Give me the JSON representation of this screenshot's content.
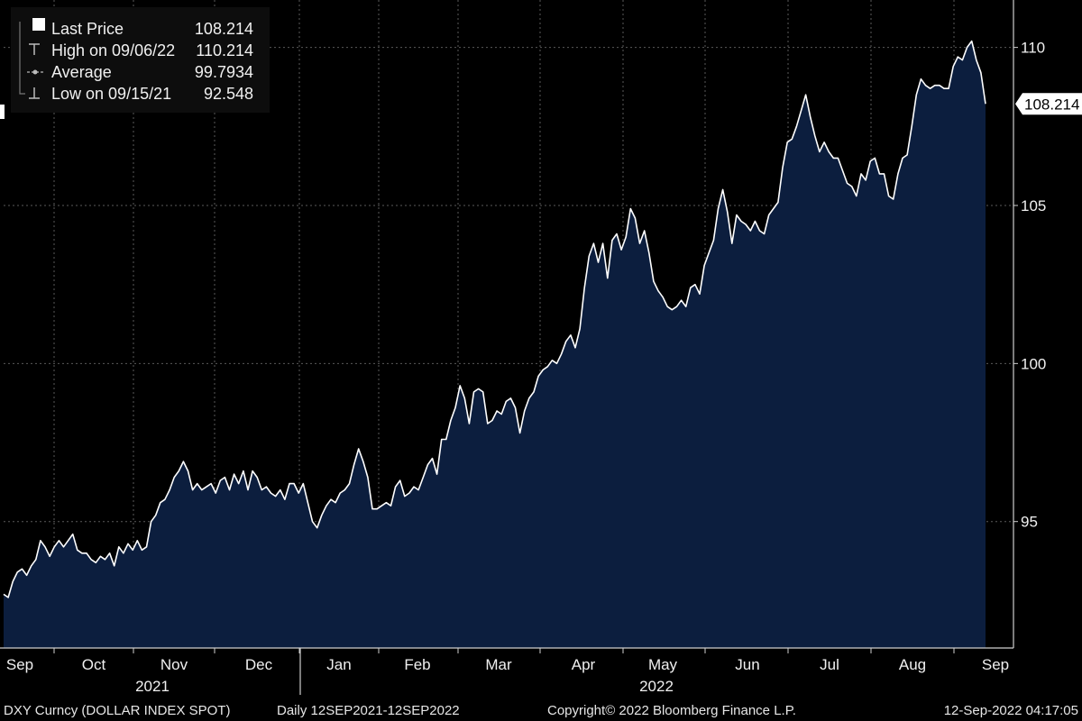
{
  "chart_data": {
    "type": "area",
    "x_ticks": [
      "Sep",
      "Oct",
      "Nov",
      "Dec",
      "Jan",
      "Feb",
      "Mar",
      "Apr",
      "May",
      "Jun",
      "Jul",
      "Aug",
      "Sep"
    ],
    "year_labels": [
      "2021",
      "2022"
    ],
    "y_ticks": [
      95,
      100,
      105,
      110
    ],
    "ylim": [
      91,
      111.5
    ],
    "grid": true,
    "legend_position": "top-left",
    "legend": [
      {
        "label": "Last Price",
        "value": "108.214"
      },
      {
        "label": "High on 09/06/22",
        "value": "110.214"
      },
      {
        "label": "Average",
        "value": "99.7934"
      },
      {
        "label": "Low on 09/15/21",
        "value": "92.548"
      }
    ],
    "last_value_label": "108.214",
    "series": [
      {
        "values": [
          92.7,
          92.6,
          93.1,
          93.4,
          93.5,
          93.3,
          93.6,
          93.8,
          94.4,
          94.2,
          93.9,
          94.2,
          94.4,
          94.2,
          94.4,
          94.6,
          94.1,
          94.0,
          94.0,
          93.8,
          93.7,
          93.9,
          93.8,
          94.0,
          93.6,
          94.2,
          94.0,
          94.3,
          94.1,
          94.4,
          94.1,
          94.2,
          95.0,
          95.2,
          95.6,
          95.7,
          96.0,
          96.4,
          96.6,
          96.9,
          96.6,
          96.0,
          96.2,
          96.0,
          96.1,
          96.2,
          95.9,
          96.3,
          96.4,
          96.0,
          96.5,
          96.2,
          96.6,
          96.0,
          96.6,
          96.4,
          96.0,
          96.1,
          95.9,
          95.8,
          96.0,
          95.7,
          96.2,
          96.2,
          95.9,
          96.2,
          95.6,
          95.0,
          94.8,
          95.2,
          95.5,
          95.7,
          95.6,
          95.9,
          96.0,
          96.2,
          96.8,
          97.3,
          96.9,
          96.4,
          95.4,
          95.4,
          95.5,
          95.6,
          95.5,
          96.1,
          96.3,
          95.8,
          95.9,
          96.1,
          96.0,
          96.4,
          96.8,
          97.0,
          96.5,
          97.6,
          97.6,
          98.2,
          98.6,
          99.3,
          98.9,
          98.1,
          99.1,
          99.2,
          99.1,
          98.1,
          98.2,
          98.5,
          98.4,
          98.8,
          98.9,
          98.6,
          97.8,
          98.5,
          98.9,
          99.1,
          99.6,
          99.8,
          99.9,
          100.1,
          100.0,
          100.3,
          100.7,
          100.9,
          100.5,
          101.1,
          102.4,
          103.4,
          103.8,
          103.2,
          103.8,
          102.7,
          103.9,
          104.1,
          103.6,
          104.0,
          104.9,
          104.6,
          103.8,
          104.2,
          103.5,
          102.6,
          102.3,
          102.1,
          101.8,
          101.7,
          101.8,
          102.0,
          101.8,
          102.4,
          102.5,
          102.2,
          103.1,
          103.5,
          103.9,
          104.9,
          105.5,
          104.8,
          103.8,
          104.7,
          104.5,
          104.4,
          104.2,
          104.5,
          104.2,
          104.1,
          104.7,
          104.9,
          105.1,
          106.2,
          107.0,
          107.1,
          107.5,
          108.0,
          108.5,
          107.8,
          107.2,
          106.7,
          107.0,
          106.7,
          106.5,
          106.5,
          106.1,
          105.7,
          105.6,
          105.3,
          106.0,
          105.8,
          106.4,
          106.5,
          106.0,
          106.0,
          105.3,
          105.2,
          106.0,
          106.5,
          106.6,
          107.5,
          108.5,
          109.0,
          108.8,
          108.7,
          108.8,
          108.8,
          108.7,
          108.7,
          109.4,
          109.7,
          109.6,
          110.0,
          110.2,
          109.6,
          109.2,
          108.214
        ]
      }
    ],
    "colors": {
      "line": "#ffffff",
      "area": "#0c1e3e",
      "grid": "#5a5a5a",
      "background": "#000000"
    }
  },
  "footer": {
    "ticker": "DXY Curncy (DOLLAR INDEX SPOT)",
    "range": "Daily 12SEP2021-12SEP2022",
    "copyright": "Copyright© 2022 Bloomberg Finance L.P.",
    "timestamp": "12-Sep-2022 04:17:05"
  }
}
